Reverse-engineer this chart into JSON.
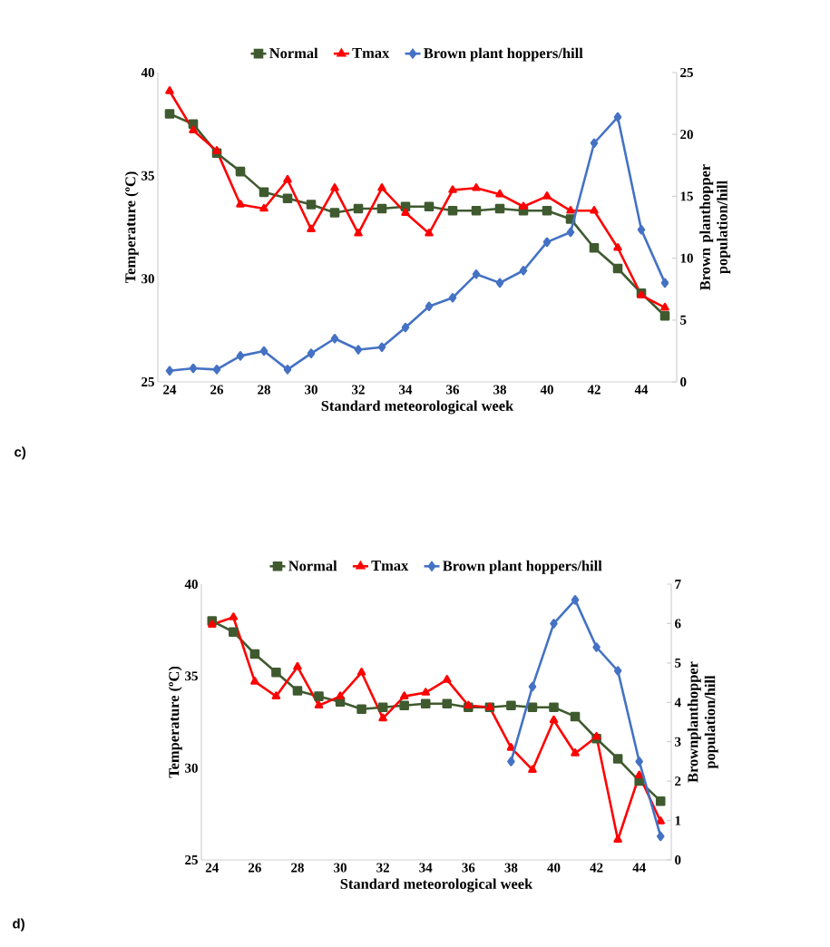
{
  "chart_data": [
    {
      "type": "line",
      "xlabel": "Standard meteorological week",
      "ylabel": "Temperature (ºC)",
      "y2label": "Brown planthopper population/hill",
      "x": [
        24,
        25,
        26,
        27,
        28,
        29,
        30,
        31,
        32,
        33,
        34,
        35,
        36,
        37,
        38,
        39,
        40,
        41,
        42,
        43,
        44,
        45
      ],
      "xlim": [
        23.5,
        45.5
      ],
      "xticks": [
        24,
        26,
        28,
        30,
        32,
        34,
        36,
        38,
        40,
        42,
        44
      ],
      "ylim": [
        25,
        40
      ],
      "yticks": [
        25,
        30,
        35,
        40
      ],
      "y2lim": [
        0,
        25
      ],
      "y2ticks": [
        0,
        5,
        10,
        15,
        20,
        25
      ],
      "legend": "top",
      "series": [
        {
          "name": "Normal",
          "color": "#3f5a2f",
          "marker": "square",
          "values": [
            38.0,
            37.5,
            36.1,
            35.2,
            34.2,
            33.9,
            33.6,
            33.2,
            33.4,
            33.4,
            33.5,
            33.5,
            33.3,
            33.3,
            33.4,
            33.3,
            33.3,
            32.9,
            31.5,
            30.5,
            29.3,
            28.2
          ]
        },
        {
          "name": "Tmax",
          "color": "#ff0000",
          "marker": "triangle",
          "values": [
            39.1,
            37.2,
            36.2,
            33.6,
            33.4,
            34.8,
            32.4,
            34.4,
            32.2,
            34.4,
            33.2,
            32.2,
            34.3,
            34.4,
            34.1,
            33.5,
            34.0,
            33.3,
            33.3,
            31.5,
            29.2,
            28.6
          ]
        },
        {
          "name": "Brown plant hoppers/hill",
          "color": "#4472c4",
          "marker": "diamond",
          "axis": "y2",
          "values": [
            0.9,
            1.1,
            1.0,
            2.1,
            2.5,
            1.0,
            2.3,
            3.5,
            2.6,
            2.8,
            4.4,
            6.1,
            6.8,
            8.7,
            8.0,
            9.0,
            11.3,
            12.1,
            19.3,
            21.4,
            12.3,
            8.0
          ]
        }
      ],
      "annotations": [
        "c)"
      ]
    },
    {
      "type": "line",
      "xlabel": "Standard meteorological week",
      "ylabel": "Temperature (ºC)",
      "y2label": "Brownplanthopper population/hill",
      "x": [
        24,
        25,
        26,
        27,
        28,
        29,
        30,
        31,
        32,
        33,
        34,
        35,
        36,
        37,
        38,
        39,
        40,
        41,
        42,
        43,
        44,
        45
      ],
      "xlim": [
        23.5,
        45.5
      ],
      "xticks": [
        24,
        26,
        28,
        30,
        32,
        34,
        36,
        38,
        40,
        42,
        44
      ],
      "ylim": [
        25,
        40
      ],
      "yticks": [
        25,
        30,
        35,
        40
      ],
      "y2lim": [
        0,
        7
      ],
      "y2ticks": [
        0,
        1,
        2,
        3,
        4,
        5,
        6,
        7
      ],
      "legend": "top",
      "series": [
        {
          "name": "Normal",
          "color": "#3f5a2f",
          "marker": "square",
          "values": [
            38.0,
            37.4,
            36.2,
            35.2,
            34.2,
            33.9,
            33.6,
            33.2,
            33.3,
            33.4,
            33.5,
            33.5,
            33.3,
            33.3,
            33.4,
            33.3,
            33.3,
            32.8,
            31.6,
            30.5,
            29.3,
            28.2
          ]
        },
        {
          "name": "Tmax",
          "color": "#ff0000",
          "marker": "triangle",
          "values": [
            37.8,
            38.2,
            34.7,
            33.9,
            35.5,
            33.4,
            33.9,
            35.2,
            32.7,
            33.9,
            34.1,
            34.8,
            33.4,
            33.3,
            31.1,
            29.9,
            32.6,
            30.8,
            31.7,
            26.1,
            29.6,
            27.1
          ]
        },
        {
          "name": "Brown plant hoppers/hill",
          "color": "#4472c4",
          "marker": "diamond",
          "axis": "y2",
          "values": [
            null,
            null,
            null,
            null,
            null,
            null,
            null,
            null,
            null,
            null,
            null,
            null,
            null,
            null,
            2.5,
            4.4,
            6.0,
            6.6,
            5.4,
            4.8,
            2.5,
            0.6
          ]
        }
      ],
      "annotations": [
        "d)"
      ]
    }
  ]
}
